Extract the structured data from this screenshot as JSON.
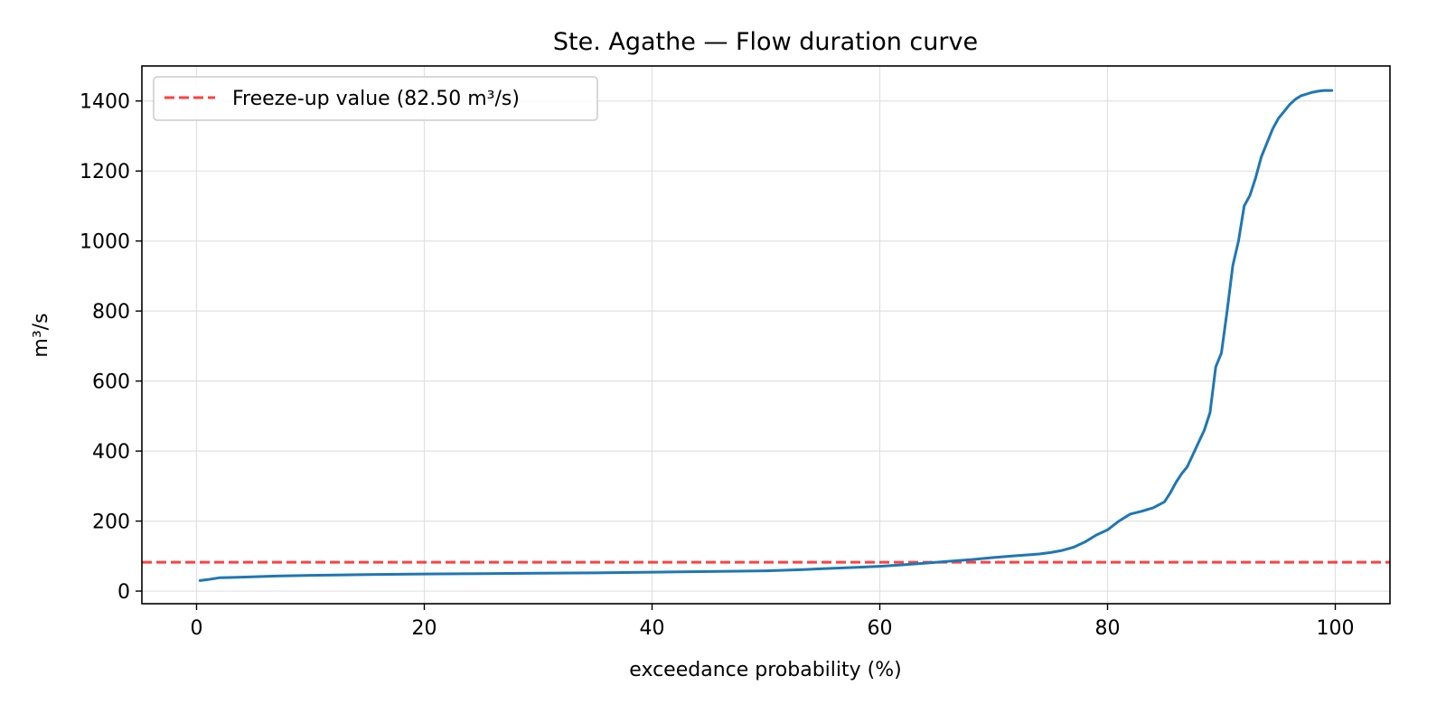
{
  "chart_data": {
    "type": "line",
    "title": "Ste. Agathe — Flow duration curve",
    "xlabel": "exceedance probability (%)",
    "ylabel": "m³/s",
    "xlim": [
      -4.8,
      104.8
    ],
    "ylim": [
      -36,
      1500
    ],
    "xticks": [
      0,
      20,
      40,
      60,
      80,
      100
    ],
    "yticks": [
      0,
      200,
      400,
      600,
      800,
      1000,
      1200,
      1400
    ],
    "grid": true,
    "legend_position": "top-left",
    "series": [
      {
        "name": "",
        "color": "#1f77b4",
        "x": [
          0.3,
          1,
          2,
          4,
          7,
          10,
          15,
          20,
          25,
          30,
          35,
          40,
          45,
          50,
          53,
          55,
          58,
          60,
          62,
          64,
          66,
          68,
          70,
          72,
          74,
          75,
          76,
          77,
          78,
          79,
          80,
          81,
          82,
          83,
          84,
          85,
          85.5,
          86,
          86.5,
          87,
          87.5,
          88,
          88.5,
          89,
          89.5,
          90,
          90.5,
          91,
          91.5,
          92,
          92.5,
          93,
          93.5,
          94,
          94.5,
          95,
          95.5,
          96,
          96.5,
          97,
          97.5,
          98,
          98.5,
          99,
          99.7
        ],
        "y": [
          30,
          33,
          38,
          40,
          43,
          45,
          47,
          49,
          50,
          51,
          52,
          54,
          56,
          58,
          61,
          64,
          68,
          71,
          75,
          80,
          85,
          90,
          96,
          101,
          106,
          110,
          116,
          125,
          140,
          160,
          175,
          200,
          220,
          228,
          238,
          255,
          280,
          310,
          335,
          355,
          390,
          425,
          460,
          510,
          640,
          680,
          800,
          930,
          1000,
          1100,
          1130,
          1180,
          1240,
          1280,
          1320,
          1350,
          1370,
          1390,
          1405,
          1415,
          1420,
          1425,
          1428,
          1430,
          1430
        ]
      }
    ],
    "reference_lines": [
      {
        "label": "Freeze-up value (82.50 m³/s)",
        "y": 82.5,
        "color": "#ff0000",
        "style": "dashed"
      }
    ]
  }
}
